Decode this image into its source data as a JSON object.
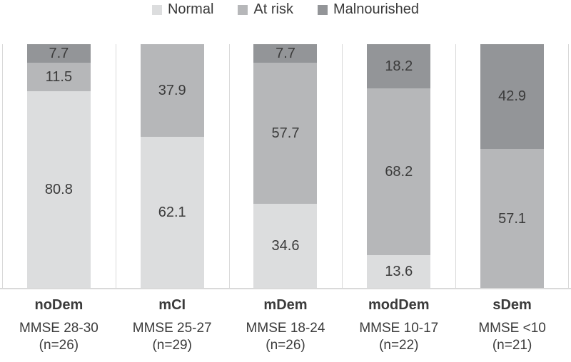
{
  "legend": {
    "position": "top",
    "items": [
      {
        "label": "Normal",
        "color": "#dcddde"
      },
      {
        "label": "At risk",
        "color": "#b6b7b9"
      },
      {
        "label": "Malnourished",
        "color": "#939598"
      }
    ]
  },
  "chart_data": {
    "type": "bar",
    "variant": "stacked-100-percent",
    "orientation": "vertical",
    "title": "",
    "categories": [
      "noDem",
      "mCI",
      "mDem",
      "modDem",
      "sDem"
    ],
    "category_sublabels": [
      "MMSE 28-30",
      "MMSE 25-27",
      "MMSE 18-24",
      "MMSE 10-17",
      "MMSE <10"
    ],
    "category_counts": [
      "(n=26)",
      "(n=29)",
      "(n=26)",
      "(n=22)",
      "(n=21)"
    ],
    "series": [
      {
        "name": "Normal",
        "color": "#dcddde",
        "values": [
          80.8,
          62.1,
          34.6,
          13.6,
          0
        ]
      },
      {
        "name": "At risk",
        "color": "#b6b7b9",
        "values": [
          11.5,
          37.9,
          57.7,
          68.2,
          57.1
        ]
      },
      {
        "name": "Malnourished",
        "color": "#939598",
        "values": [
          7.7,
          0,
          7.7,
          18.2,
          42.9
        ]
      }
    ],
    "unit": "percent",
    "ylim": [
      0,
      100
    ],
    "data_labels": true,
    "legend_position": "top",
    "grid": "vertical category separator lines",
    "axis_color": "#d9d9d9",
    "text_color": "#3b3b3b"
  }
}
